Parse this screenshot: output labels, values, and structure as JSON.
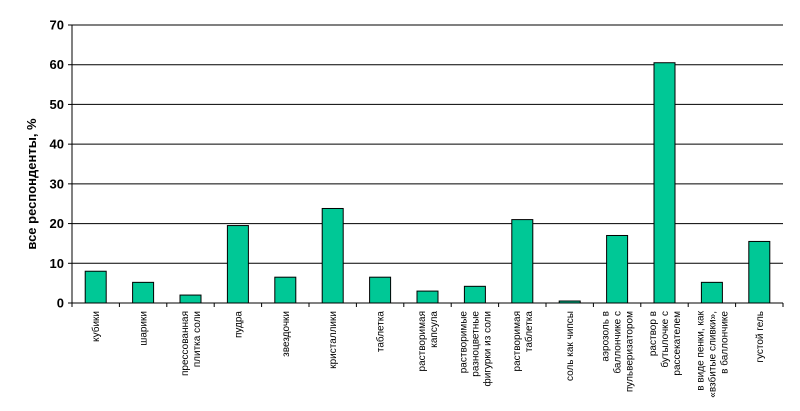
{
  "colors": {
    "bar": "#00c896",
    "bar_stroke": "#000000",
    "grid": "#000000",
    "background": "#ffffff"
  },
  "chart_data": {
    "type": "bar",
    "title": "",
    "xlabel": "",
    "ylabel": "все респонденты, %",
    "ylim": [
      0,
      70
    ],
    "yticks": [
      0,
      10,
      20,
      30,
      40,
      50,
      60,
      70
    ],
    "grid": true,
    "legend": "none",
    "categories": [
      [
        "кубики"
      ],
      [
        "шарики"
      ],
      [
        "прессованная",
        "плитка соли"
      ],
      [
        "пудра"
      ],
      [
        "звездочки"
      ],
      [
        "кристаллики"
      ],
      [
        "таблетка"
      ],
      [
        "растворимая",
        "капсула"
      ],
      [
        "растворимые",
        "разноцветные",
        "фигурки из соли"
      ],
      [
        "растворимая",
        "таблетка"
      ],
      [
        "соль как чипсы"
      ],
      [
        "аэрозоль в",
        "баллончике с",
        "пульверизатором"
      ],
      [
        "раствор в",
        "бутылочке с",
        "рассекателем"
      ],
      [
        "в виде пенки, как",
        "«взбитые сливки»,",
        "в баллончике"
      ],
      [
        "густой гель"
      ]
    ],
    "values": [
      8,
      5.2,
      2,
      19.5,
      6.5,
      23.8,
      6.5,
      3,
      4.2,
      21,
      0.5,
      17,
      60.5,
      5.2,
      15.5
    ]
  }
}
